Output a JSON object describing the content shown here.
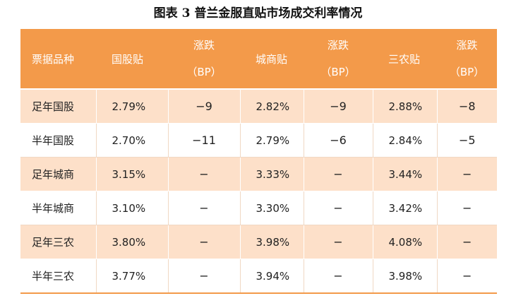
{
  "title": "图表 3 普兰金服直贴市场成交利率情况",
  "table": {
    "headers": {
      "variety": "票据品种",
      "guogu": "国股贴",
      "chg1_line1": "涨跌",
      "chg1_line2": "（BP）",
      "chengshang": "城商贴",
      "chg2_line1": "涨跌",
      "chg2_line2": "（BP）",
      "sannong": "三农贴",
      "chg3_line1": "涨跌",
      "chg3_line2": "（BP）"
    },
    "rows": [
      {
        "name": "足年国股",
        "guogu": "2.79%",
        "chg1": "−9",
        "chengshang": "2.82%",
        "chg2": "−9",
        "sannong": "2.88%",
        "chg3": "−8"
      },
      {
        "name": "半年国股",
        "guogu": "2.70%",
        "chg1": "−11",
        "chengshang": "2.79%",
        "chg2": "−6",
        "sannong": "2.84%",
        "chg3": "−5"
      },
      {
        "name": "足年城商",
        "guogu": "3.15%",
        "chg1": "−",
        "chengshang": "3.33%",
        "chg2": "−",
        "sannong": "3.44%",
        "chg3": "−"
      },
      {
        "name": "半年城商",
        "guogu": "3.10%",
        "chg1": "−",
        "chengshang": "3.30%",
        "chg2": "−",
        "sannong": "3.42%",
        "chg3": "−"
      },
      {
        "name": "足年三农",
        "guogu": "3.80%",
        "chg1": "−",
        "chengshang": "3.98%",
        "chg2": "−",
        "sannong": "4.08%",
        "chg3": "−"
      },
      {
        "name": "半年三农",
        "guogu": "3.77%",
        "chg1": "−",
        "chengshang": "3.94%",
        "chg2": "−",
        "sannong": "3.98%",
        "chg3": "−"
      }
    ]
  },
  "colors": {
    "header_bg": "#f39a4a",
    "row_shade": "#fde0c9"
  }
}
